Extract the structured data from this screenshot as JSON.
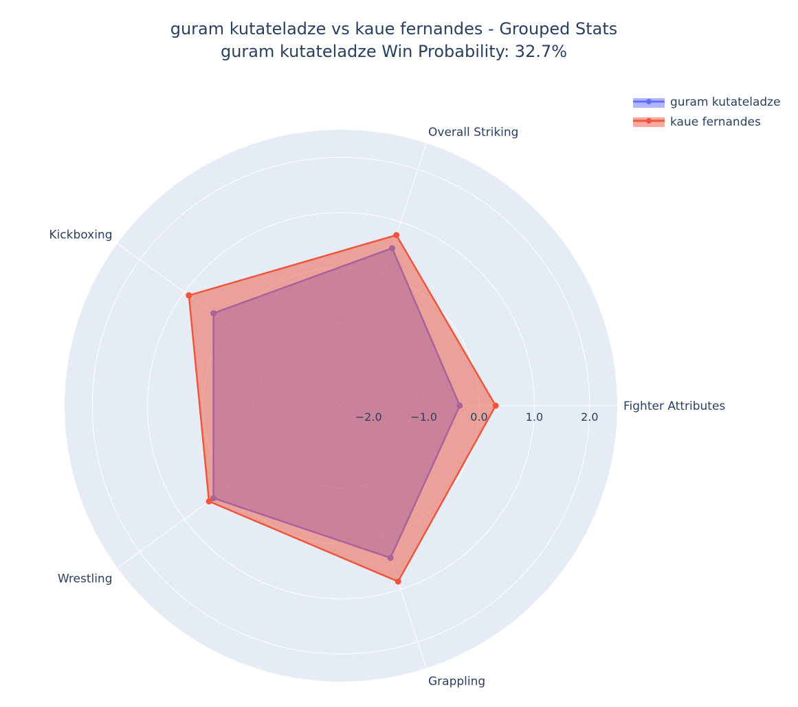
{
  "chart_data": {
    "type": "radar",
    "title": "guram kutateladze vs kaue fernandes - Grouped Stats",
    "subtitle": "guram kutateladze Win Probability: 32.7%",
    "axes": [
      "Fighter Attributes",
      "Overall Striking",
      "Kickboxing",
      "Wrestling",
      "Grappling"
    ],
    "radial_range": [
      -2.5,
      2.5
    ],
    "radial_ticks": [
      -2.0,
      -1.0,
      0.0,
      1.0,
      2.0
    ],
    "radial_tick_labels": [
      "−2.0",
      "−1.0",
      "0.0",
      "1.0",
      "2.0"
    ],
    "grid": true,
    "legend_position": "top-right",
    "series": [
      {
        "name": "guram kutateladze",
        "color": "#636efa",
        "fill": "rgba(99,110,250,0.5)",
        "values": [
          -0.35,
          0.5,
          0.35,
          0.35,
          0.4
        ]
      },
      {
        "name": "kaue fernandes",
        "color": "#ef553b",
        "fill": "rgba(239,85,59,0.5)",
        "values": [
          0.3,
          0.75,
          0.9,
          0.45,
          0.85
        ]
      }
    ]
  }
}
